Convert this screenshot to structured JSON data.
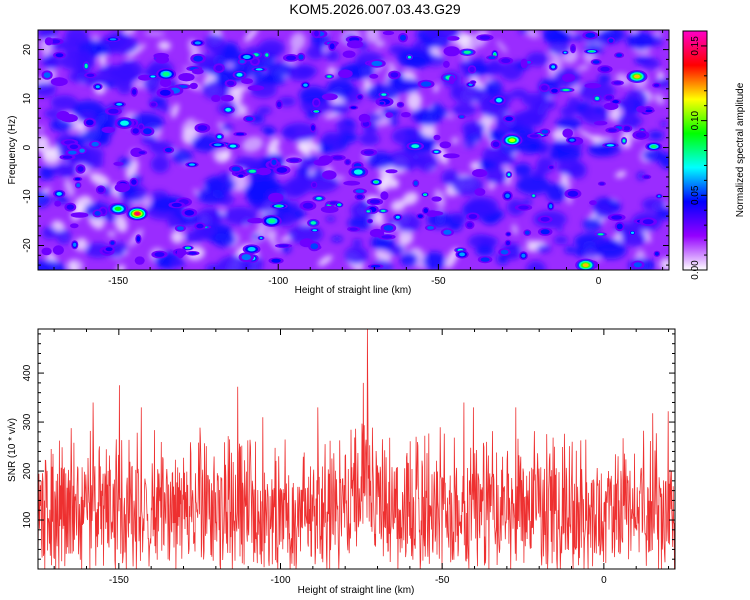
{
  "title": "KOM5.2026.007.03.43.G29",
  "chart_data": [
    {
      "type": "heatmap",
      "xlabel": "Height of straight line (km)",
      "ylabel": "Frequency (Hz)",
      "xlim": [
        -175,
        22
      ],
      "ylim": [
        -25,
        24
      ],
      "xticks": [
        -150,
        -100,
        -50,
        0
      ],
      "xtick_labels": [
        "-150",
        "-100",
        "-50",
        "0"
      ],
      "yticks": [
        -20,
        -10,
        0,
        10,
        20
      ],
      "ytick_labels": [
        "-20",
        "-10",
        "0",
        "10",
        "20"
      ],
      "colorbar": {
        "label": "Normalized spectral amplitude",
        "range": [
          0.0,
          0.16
        ],
        "ticks": [
          0.0,
          0.05,
          0.1,
          0.15
        ],
        "tick_labels": [
          "0.00",
          "0.05",
          "0.10",
          "0.15"
        ],
        "colormap": [
          "#ffffff",
          "#9400ff",
          "#0000ff",
          "#00ffff",
          "#00ff00",
          "#ffff00",
          "#ff0000",
          "#ff00c8"
        ]
      },
      "hotspots": [
        {
          "x": -144,
          "y": -13.5,
          "value": 0.15
        },
        {
          "x": 12,
          "y": 14.5,
          "value": 0.12
        },
        {
          "x": -4,
          "y": -24,
          "value": 0.12
        },
        {
          "x": -27,
          "y": 1.5,
          "value": 0.11
        },
        {
          "x": -150,
          "y": -12.5,
          "value": 0.09
        },
        {
          "x": -135,
          "y": 15,
          "value": 0.08
        },
        {
          "x": -102,
          "y": -15,
          "value": 0.08
        },
        {
          "x": -148,
          "y": 5,
          "value": 0.07
        },
        {
          "x": -75,
          "y": -5,
          "value": 0.07
        }
      ]
    },
    {
      "type": "line",
      "xlabel": "Height of straight line (km)",
      "ylabel": "SNR (10 * v/v)",
      "xlim": [
        -175,
        22
      ],
      "ylim": [
        0,
        490
      ],
      "xticks": [
        -150,
        -100,
        -50,
        0
      ],
      "xtick_labels": [
        "-150",
        "-100",
        "-50",
        "0"
      ],
      "yticks": [
        100,
        200,
        300,
        400
      ],
      "ytick_labels": [
        "100",
        "200",
        "300",
        "400"
      ],
      "series": [
        {
          "name": "SNR",
          "color": "#ee3030",
          "baseline": 120,
          "noise_range": [
            0,
            280
          ],
          "peaks": [
            {
              "x": -73,
              "value": 490
            },
            {
              "x": -74,
              "value": 380
            },
            {
              "x": -158,
              "value": 340
            },
            {
              "x": -143,
              "value": 330
            },
            {
              "x": -150,
              "value": 375
            },
            {
              "x": -113,
              "value": 372
            },
            {
              "x": -105,
              "value": 310
            },
            {
              "x": -40,
              "value": 330
            },
            {
              "x": -27,
              "value": 330
            },
            {
              "x": -43,
              "value": 340
            },
            {
              "x": -88,
              "value": 330
            },
            {
              "x": 20,
              "value": 322
            },
            {
              "x": 15,
              "value": 318
            }
          ]
        }
      ]
    }
  ]
}
